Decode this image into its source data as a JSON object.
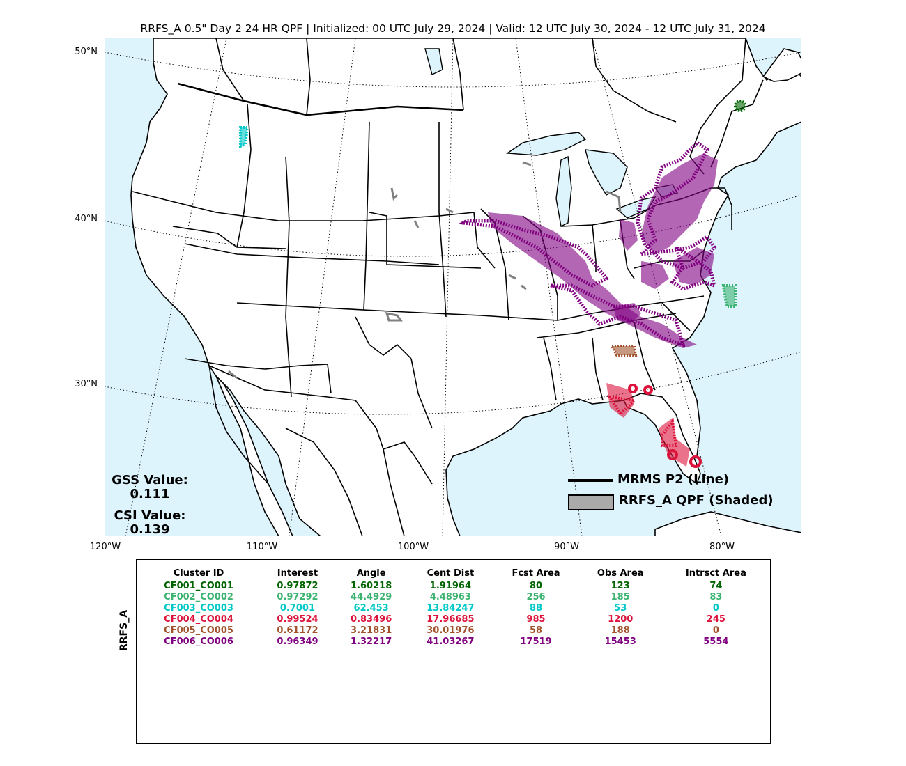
{
  "title": "RRFS_A 0.5\" Day 2 24 HR QPF | Initialized: 00 UTC July 29, 2024 | Valid: 12 UTC July 30, 2024 - 12 UTC July 31, 2024",
  "lat_labels": [
    "50°N",
    "40°N",
    "30°N"
  ],
  "lon_labels": [
    "120°W",
    "110°W",
    "100°W",
    "90°W",
    "80°W"
  ],
  "scores": {
    "gss_label": "GSS Value:",
    "gss_value": "0.111",
    "csi_label": "CSI Value:",
    "csi_value": "0.139"
  },
  "legend": {
    "line_label": "MRMS P2 (Line)",
    "shaded_label": "RRFS_A QPF (Shaded)"
  },
  "colors": {
    "ocean": "#def4fd",
    "land": "#ffffff",
    "purple": "#800080",
    "crimson": "#dc143c",
    "seagreen": "#3cb371",
    "cyan": "#00c8c8",
    "brown": "#a0522d",
    "darkgreen": "#006400",
    "gray": "#808080"
  },
  "table": {
    "model_label": "RRFS_A",
    "headers": [
      "Cluster ID",
      "Interest",
      "Angle",
      "Cent Dist",
      "Fcst Area",
      "Obs Area",
      "Intrsct Area"
    ],
    "rows": [
      {
        "color": "#006400",
        "cells": [
          "CF001_CO001",
          "0.97872",
          "1.60218",
          "1.91964",
          "80",
          "123",
          "74"
        ]
      },
      {
        "color": "#3cb371",
        "cells": [
          "CF002_CO002",
          "0.97292",
          "44.4929",
          "4.48963",
          "256",
          "185",
          "83"
        ]
      },
      {
        "color": "#00c8c8",
        "cells": [
          "CF003_CO003",
          "0.7001",
          "62.453",
          "13.84247",
          "88",
          "53",
          "0"
        ]
      },
      {
        "color": "#dc143c",
        "cells": [
          "CF004_CO004",
          "0.99524",
          "0.83496",
          "17.96685",
          "985",
          "1200",
          "245"
        ]
      },
      {
        "color": "#a0522d",
        "cells": [
          "CF005_CO005",
          "0.61172",
          "3.21831",
          "30.01976",
          "58",
          "188",
          "0"
        ]
      },
      {
        "color": "#800080",
        "cells": [
          "CF006_CO006",
          "0.96349",
          "1.32217",
          "41.03267",
          "17519",
          "15453",
          "5554"
        ]
      }
    ]
  }
}
